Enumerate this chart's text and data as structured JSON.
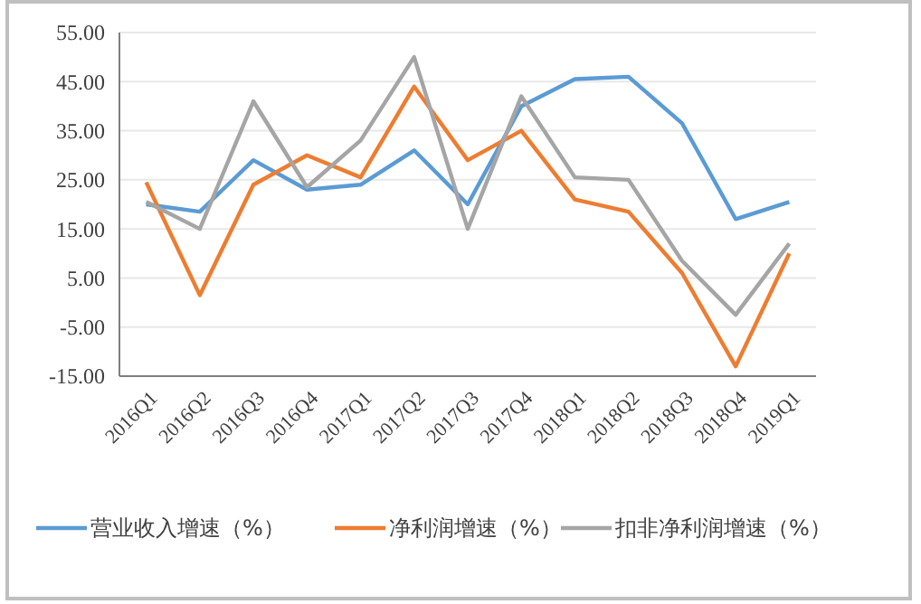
{
  "chart_data": {
    "type": "line",
    "categories": [
      "2016Q1",
      "2016Q2",
      "2016Q3",
      "2016Q4",
      "2017Q1",
      "2017Q2",
      "2017Q3",
      "2017Q4",
      "2018Q1",
      "2018Q2",
      "2018Q3",
      "2018Q4",
      "2019Q1"
    ],
    "series": [
      {
        "name": "营业收入增速（%）",
        "color": "#5b9bd5",
        "values": [
          20,
          18.5,
          29,
          23,
          24,
          31,
          20,
          40,
          45.5,
          46,
          36.5,
          17,
          20.5
        ]
      },
      {
        "name": "净利润增速（%）",
        "color": "#ed7d31",
        "values": [
          24.5,
          1.5,
          24,
          30,
          25.5,
          44,
          29,
          35,
          21,
          18.5,
          6,
          -13,
          10
        ]
      },
      {
        "name": "扣非净利润增速（%）",
        "color": "#a5a5a5",
        "values": [
          20.5,
          15,
          41,
          23.5,
          33,
          50,
          15,
          42,
          25.5,
          25,
          8.5,
          -2.5,
          12
        ]
      }
    ],
    "ylim": [
      -15,
      55
    ],
    "yticks": [
      {
        "value": -15,
        "label": "-15.00"
      },
      {
        "value": -5,
        "label": "-5.00"
      },
      {
        "value": 5,
        "label": "5.00"
      },
      {
        "value": 15,
        "label": "15.00"
      },
      {
        "value": 25,
        "label": "25.00"
      },
      {
        "value": 35,
        "label": "35.00"
      },
      {
        "value": 45,
        "label": "45.00"
      },
      {
        "value": 55,
        "label": "55.00"
      }
    ],
    "grid": "y",
    "legend": "bottom",
    "marker": "none",
    "line_style": "solid"
  }
}
